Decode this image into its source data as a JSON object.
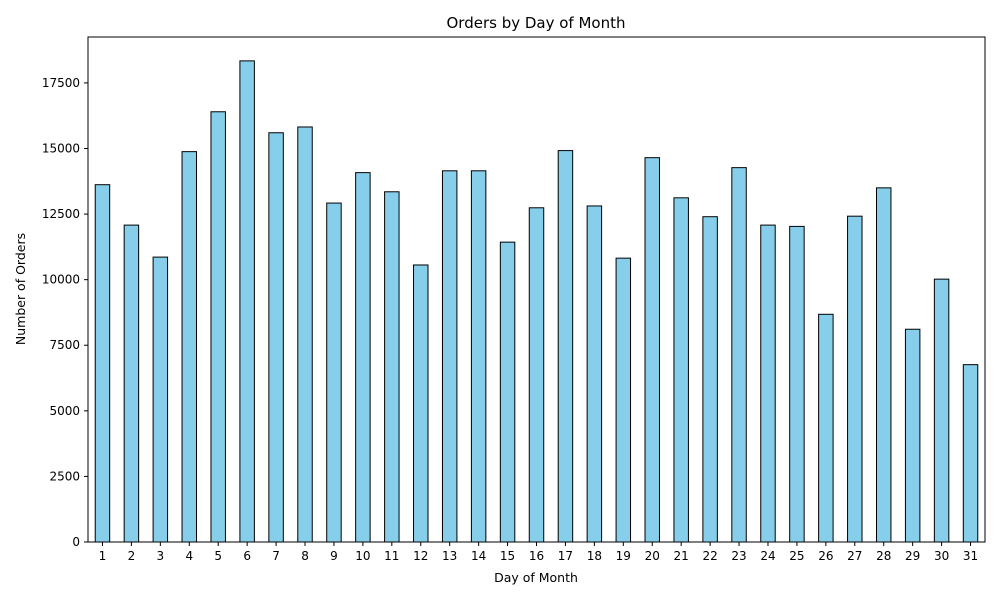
{
  "chart_data": {
    "type": "bar",
    "title": "Orders by Day of Month",
    "xlabel": "Day of Month",
    "ylabel": "Number of Orders",
    "categories": [
      "1",
      "2",
      "3",
      "4",
      "5",
      "6",
      "7",
      "8",
      "9",
      "10",
      "11",
      "12",
      "13",
      "14",
      "15",
      "16",
      "17",
      "18",
      "19",
      "20",
      "21",
      "22",
      "23",
      "24",
      "25",
      "26",
      "27",
      "28",
      "29",
      "30",
      "31"
    ],
    "values": [
      13620,
      12080,
      10860,
      14880,
      16400,
      18340,
      15600,
      15820,
      12920,
      14080,
      13350,
      10560,
      14150,
      14150,
      11430,
      12740,
      14920,
      12810,
      10820,
      14650,
      13120,
      12400,
      14270,
      12080,
      12030,
      8680,
      12420,
      13500,
      8110,
      10020,
      6760
    ],
    "ylim": [
      0,
      19250
    ],
    "yticks": [
      0,
      2500,
      5000,
      7500,
      10000,
      12500,
      15000,
      17500
    ],
    "ytick_labels": [
      "0",
      "2500",
      "5000",
      "7500",
      "10000",
      "12500",
      "15000",
      "17500"
    ],
    "bar_color": "#87CEEB",
    "bar_edge_color": "#000000",
    "grid": false,
    "legend": false
  }
}
